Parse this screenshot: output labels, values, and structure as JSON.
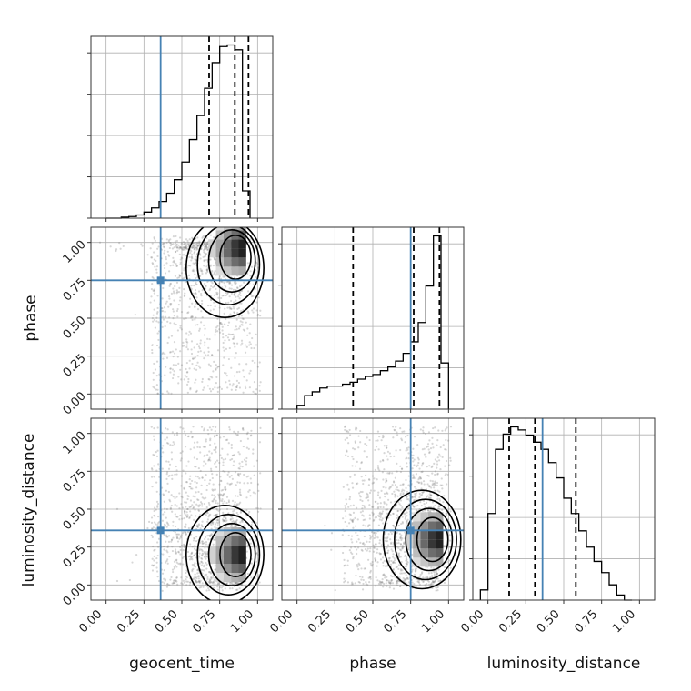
{
  "chart_data": {
    "type": "corner",
    "parameters": [
      "geocent_time",
      "phase",
      "luminosity_distance"
    ],
    "axis_range": [
      -0.1,
      1.1
    ],
    "ticks": [
      0.0,
      0.25,
      0.5,
      0.75,
      1.0
    ],
    "tick_labels": [
      "0.00",
      "0.25",
      "0.50",
      "0.75",
      "1.00"
    ],
    "grid": true,
    "truth_color": "#4682b4",
    "line_color": "#000000",
    "truths": {
      "geocent_time": 0.36,
      "phase": 0.75,
      "luminosity_distance": 0.36
    },
    "histograms": [
      {
        "parameter": "geocent_time",
        "bin_start": 0.0,
        "bin_width": 0.05,
        "counts": [
          0.0,
          0.0,
          0.3,
          0.5,
          1.0,
          1.9,
          3.2,
          5.2,
          7.8,
          12.0,
          17.5,
          24.5,
          32.0,
          40.5,
          48.5,
          53.5,
          54.0,
          52.5,
          8.5
        ],
        "quantiles": [
          0.68,
          0.85,
          0.94
        ]
      },
      {
        "parameter": "phase",
        "bin_start": 0.0,
        "bin_width": 0.05,
        "counts": [
          1.0,
          3.5,
          4.5,
          5.5,
          6.0,
          6.0,
          6.5,
          7.0,
          7.8,
          8.5,
          9.0,
          10.0,
          11.0,
          12.5,
          14.5,
          17.5,
          22.5,
          32.0,
          45.0,
          12.0
        ],
        "quantiles": [
          0.37,
          0.77,
          0.94
        ]
      },
      {
        "parameter": "luminosity_distance",
        "bin_start": -0.05,
        "bin_width": 0.05,
        "counts": [
          1.0,
          8.5,
          14.8,
          16.3,
          17.0,
          16.7,
          16.2,
          15.5,
          14.8,
          13.5,
          12.0,
          10.0,
          8.5,
          6.8,
          5.2,
          3.8,
          2.7,
          1.5,
          0.5,
          0.0
        ],
        "quantiles": [
          0.14,
          0.31,
          0.58
        ]
      }
    ],
    "density_plots": [
      {
        "x_parameter": "geocent_time",
        "y_parameter": "phase",
        "peak": [
          0.9,
          0.96
        ]
      },
      {
        "x_parameter": "geocent_time",
        "y_parameter": "luminosity_distance",
        "peak": [
          0.9,
          0.2
        ]
      },
      {
        "x_parameter": "phase",
        "y_parameter": "luminosity_distance",
        "peak": [
          0.94,
          0.3
        ]
      }
    ]
  }
}
